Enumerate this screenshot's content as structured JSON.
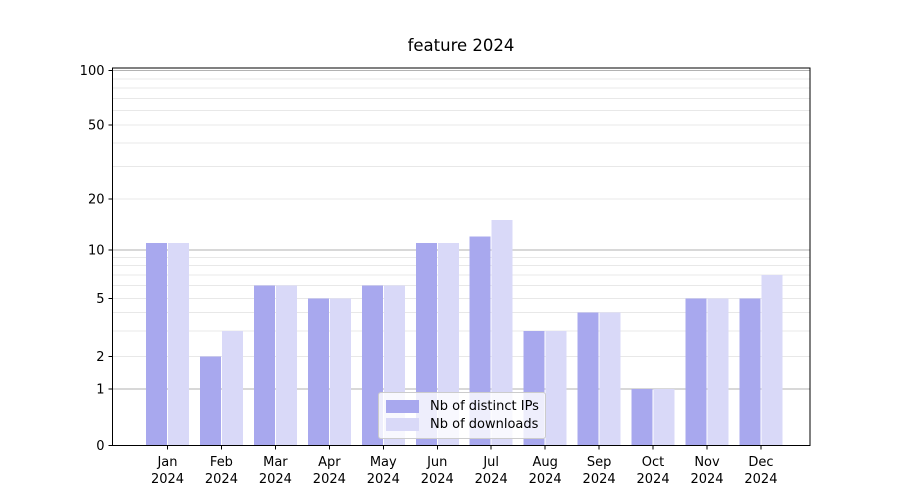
{
  "chart_data": {
    "type": "bar",
    "title": "feature 2024",
    "categories": [
      "Jan 2024",
      "Feb 2024",
      "Mar 2024",
      "Apr 2024",
      "May 2024",
      "Jun 2024",
      "Jul 2024",
      "Aug 2024",
      "Sep 2024",
      "Oct 2024",
      "Nov 2024",
      "Dec 2024"
    ],
    "series": [
      {
        "name": "Nb of distinct IPs",
        "color": "#a8a8ee",
        "values": [
          11,
          2,
          6,
          5,
          6,
          11,
          12,
          3,
          4,
          1,
          5,
          5
        ]
      },
      {
        "name": "Nb of downloads",
        "color": "#d9d9f8",
        "values": [
          11,
          3,
          6,
          5,
          6,
          11,
          15,
          3,
          4,
          1,
          5,
          7
        ]
      }
    ],
    "y_axis": {
      "scale": "log-like with 0 baseline",
      "ylim": [
        0,
        100
      ],
      "labeled_ticks": [
        0,
        1,
        2,
        5,
        10,
        20,
        50,
        100
      ],
      "major_gridline_values": [
        1,
        10,
        100
      ],
      "minor_gridline_values": [
        2,
        3,
        4,
        5,
        6,
        7,
        8,
        9,
        20,
        30,
        40,
        50,
        60,
        70,
        80,
        90
      ]
    },
    "x_axis": {
      "tick_label_second_line": "2024"
    },
    "legend": {
      "position": "inside-bottom-center",
      "entries": [
        "Nb of distinct IPs",
        "Nb of downloads"
      ]
    },
    "grid": "on",
    "colors": {
      "major_grid": "#b2b2b2",
      "minor_grid": "#e8e8e8",
      "axis_spine": "#000000",
      "tick_text": "#000000",
      "background": "#ffffff"
    }
  }
}
